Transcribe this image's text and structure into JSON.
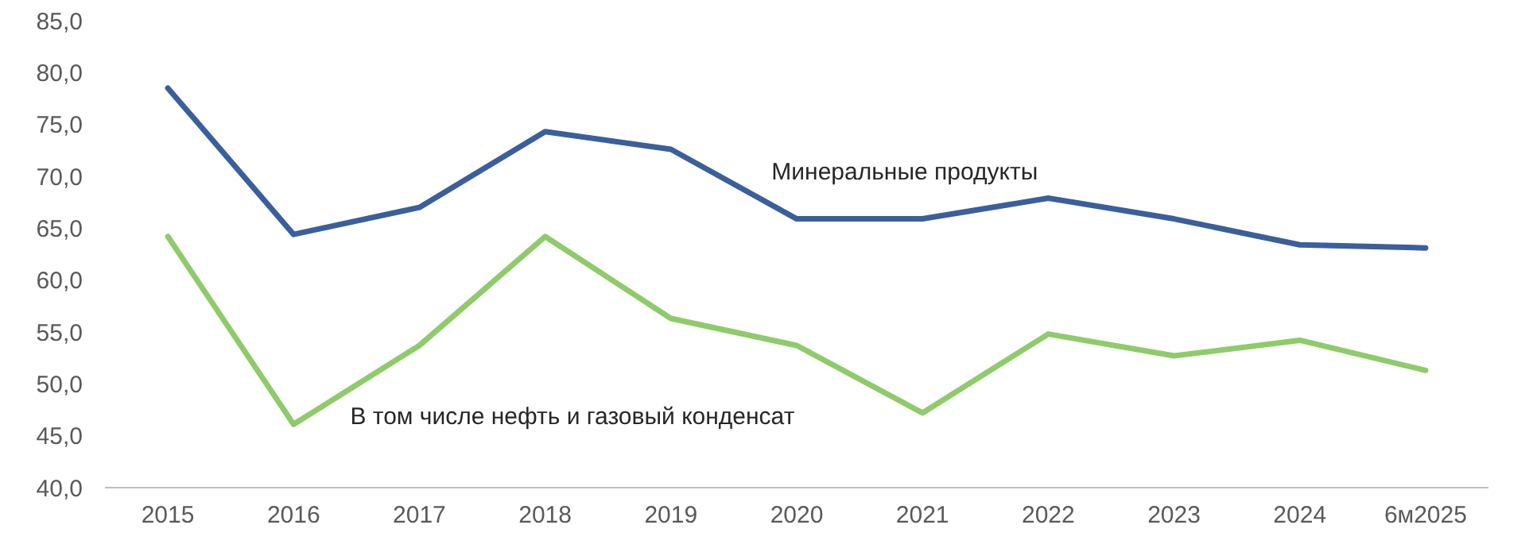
{
  "chart_data": {
    "type": "line",
    "categories": [
      "2015",
      "2016",
      "2017",
      "2018",
      "2019",
      "2020",
      "2021",
      "2022",
      "2023",
      "2024",
      "6м2025"
    ],
    "series": [
      {
        "name": "Минеральные продукты",
        "color": "#3a5f9c",
        "values": [
          78.5,
          64.4,
          67.0,
          74.3,
          72.6,
          65.9,
          65.9,
          67.9,
          65.9,
          63.4,
          63.1
        ]
      },
      {
        "name": "В том числе нефть и газовый конденсат",
        "color": "#8fcb6a",
        "values": [
          64.2,
          46.1,
          53.7,
          64.2,
          56.3,
          53.7,
          47.2,
          54.8,
          52.7,
          54.2,
          51.3
        ]
      }
    ],
    "ylim": [
      40,
      85
    ],
    "yticks": [
      {
        "value": 40,
        "label": "40,0"
      },
      {
        "value": 45,
        "label": "45,0"
      },
      {
        "value": 50,
        "label": "50,0"
      },
      {
        "value": 55,
        "label": "55,0"
      },
      {
        "value": 60,
        "label": "60,0"
      },
      {
        "value": 65,
        "label": "65,0"
      },
      {
        "value": 70,
        "label": "70,0"
      },
      {
        "value": 75,
        "label": "75,0"
      },
      {
        "value": 80,
        "label": "80,0"
      },
      {
        "value": 85,
        "label": "85,0"
      }
    ],
    "grid": false,
    "marker": "none",
    "line_style": "solid"
  }
}
